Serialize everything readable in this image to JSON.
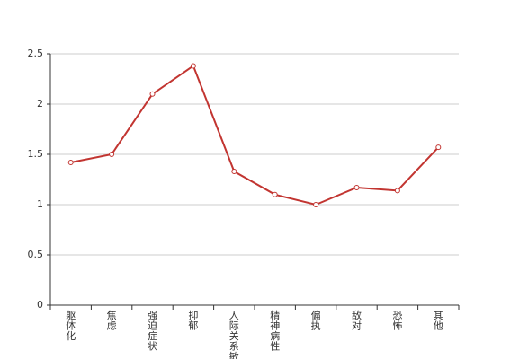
{
  "chart_data": {
    "type": "line",
    "categories": [
      "躯体化",
      "焦虑",
      "强迫症状",
      "抑郁",
      "人际关系敏感",
      "精神病性",
      "偏执",
      "敌对",
      "恐怖",
      "其他"
    ],
    "values": [
      1.42,
      1.5,
      2.1,
      2.38,
      1.33,
      1.1,
      1.0,
      1.17,
      1.14,
      1.57
    ],
    "color": "#c23531",
    "ylim": [
      0,
      2.5
    ],
    "yticks": [
      0,
      0.5,
      1,
      1.5,
      2,
      2.5
    ],
    "grid": true
  }
}
